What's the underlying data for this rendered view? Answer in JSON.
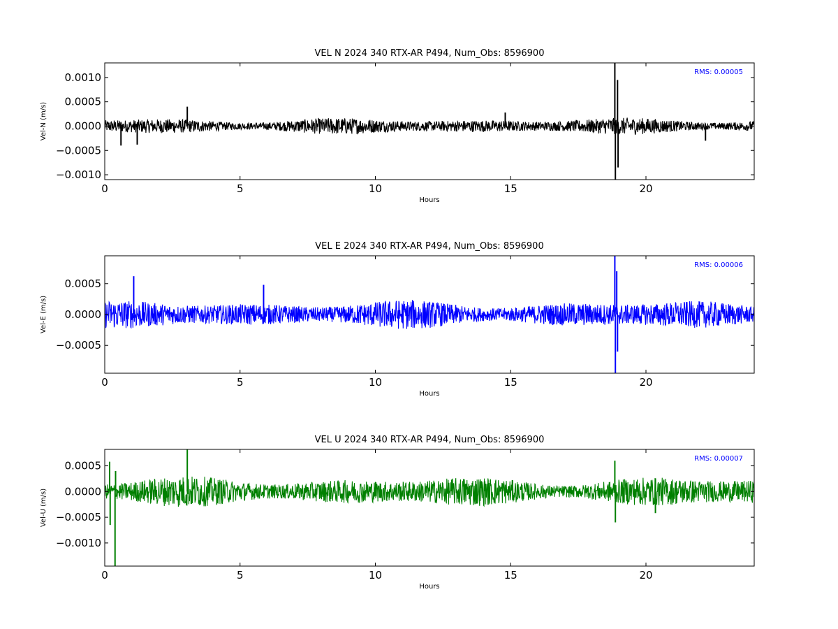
{
  "chart_data": [
    {
      "type": "line",
      "title": "VEL N 2024 340 RTX-AR  P494, Num_Obs: 8596900",
      "xlabel": "Hours",
      "ylabel": "Vel-N (m/s)",
      "xlim": [
        0,
        24
      ],
      "ylim": [
        -0.0011,
        0.0013
      ],
      "xticks": [
        0,
        5,
        10,
        15,
        20
      ],
      "xtick_labels": [
        "0",
        "5",
        "10",
        "15",
        "20"
      ],
      "yticks": [
        -0.001,
        -0.0005,
        0,
        0.0005,
        0.001
      ],
      "ytick_labels": [
        "−0.0010",
        "−0.0005",
        "0.0000",
        "0.0005",
        "0.0010"
      ],
      "annotation": "RMS:  0.00005",
      "annotation_color": "#0000ff",
      "color": "#000000",
      "noise_amp": 0.00016,
      "spikes": [
        [
          0.6,
          -0.0004
        ],
        [
          1.2,
          -0.00038
        ],
        [
          3.05,
          0.0004
        ],
        [
          14.8,
          0.00028
        ],
        [
          18.85,
          0.0013
        ],
        [
          18.87,
          -0.0011
        ],
        [
          18.95,
          0.00095
        ],
        [
          18.97,
          -0.00085
        ],
        [
          22.2,
          -0.0003
        ]
      ],
      "grid": false
    },
    {
      "type": "line",
      "title": "VEL E 2024 340 RTX-AR  P494, Num_Obs: 8596900",
      "xlabel": "Hours",
      "ylabel": "Vel-E (m/s)",
      "xlim": [
        0,
        24
      ],
      "ylim": [
        -0.00095,
        0.00095
      ],
      "xticks": [
        0,
        5,
        10,
        15,
        20
      ],
      "xtick_labels": [
        "0",
        "5",
        "10",
        "15",
        "20"
      ],
      "yticks": [
        -0.0005,
        0,
        0.0005
      ],
      "ytick_labels": [
        "−0.0005",
        "0.0000",
        "0.0005"
      ],
      "annotation": "RMS:  0.00006",
      "annotation_color": "#0000ff",
      "color": "#0000ff",
      "noise_amp": 0.00022,
      "spikes": [
        [
          1.07,
          0.00062
        ],
        [
          5.87,
          0.00048
        ],
        [
          18.85,
          0.00095
        ],
        [
          18.87,
          -0.00095
        ],
        [
          18.92,
          0.0007
        ],
        [
          18.95,
          -0.0006
        ]
      ],
      "grid": false
    },
    {
      "type": "line",
      "title": "VEL U 2024 340 RTX-AR  P494, Num_Obs: 8596900",
      "xlabel": "Hours",
      "ylabel": "Vel-U (m/s)",
      "xlim": [
        0,
        24
      ],
      "ylim": [
        -0.00145,
        0.00082
      ],
      "xticks": [
        0,
        5,
        10,
        15,
        20
      ],
      "xtick_labels": [
        "0",
        "5",
        "10",
        "15",
        "20"
      ],
      "yticks": [
        -0.001,
        -0.0005,
        0,
        0.0005
      ],
      "ytick_labels": [
        "−0.0010",
        "−0.0005",
        "0.0000",
        "0.0005"
      ],
      "annotation": "RMS:  0.00007",
      "annotation_color": "#0000ff",
      "color": "#008000",
      "noise_amp": 0.00028,
      "spikes": [
        [
          0.18,
          0.00058
        ],
        [
          0.2,
          -0.00065
        ],
        [
          0.38,
          -0.00145
        ],
        [
          0.4,
          0.0004
        ],
        [
          3.05,
          0.00082
        ],
        [
          18.85,
          0.0006
        ],
        [
          18.87,
          -0.0006
        ],
        [
          20.35,
          -0.00042
        ]
      ],
      "grid": false
    }
  ]
}
